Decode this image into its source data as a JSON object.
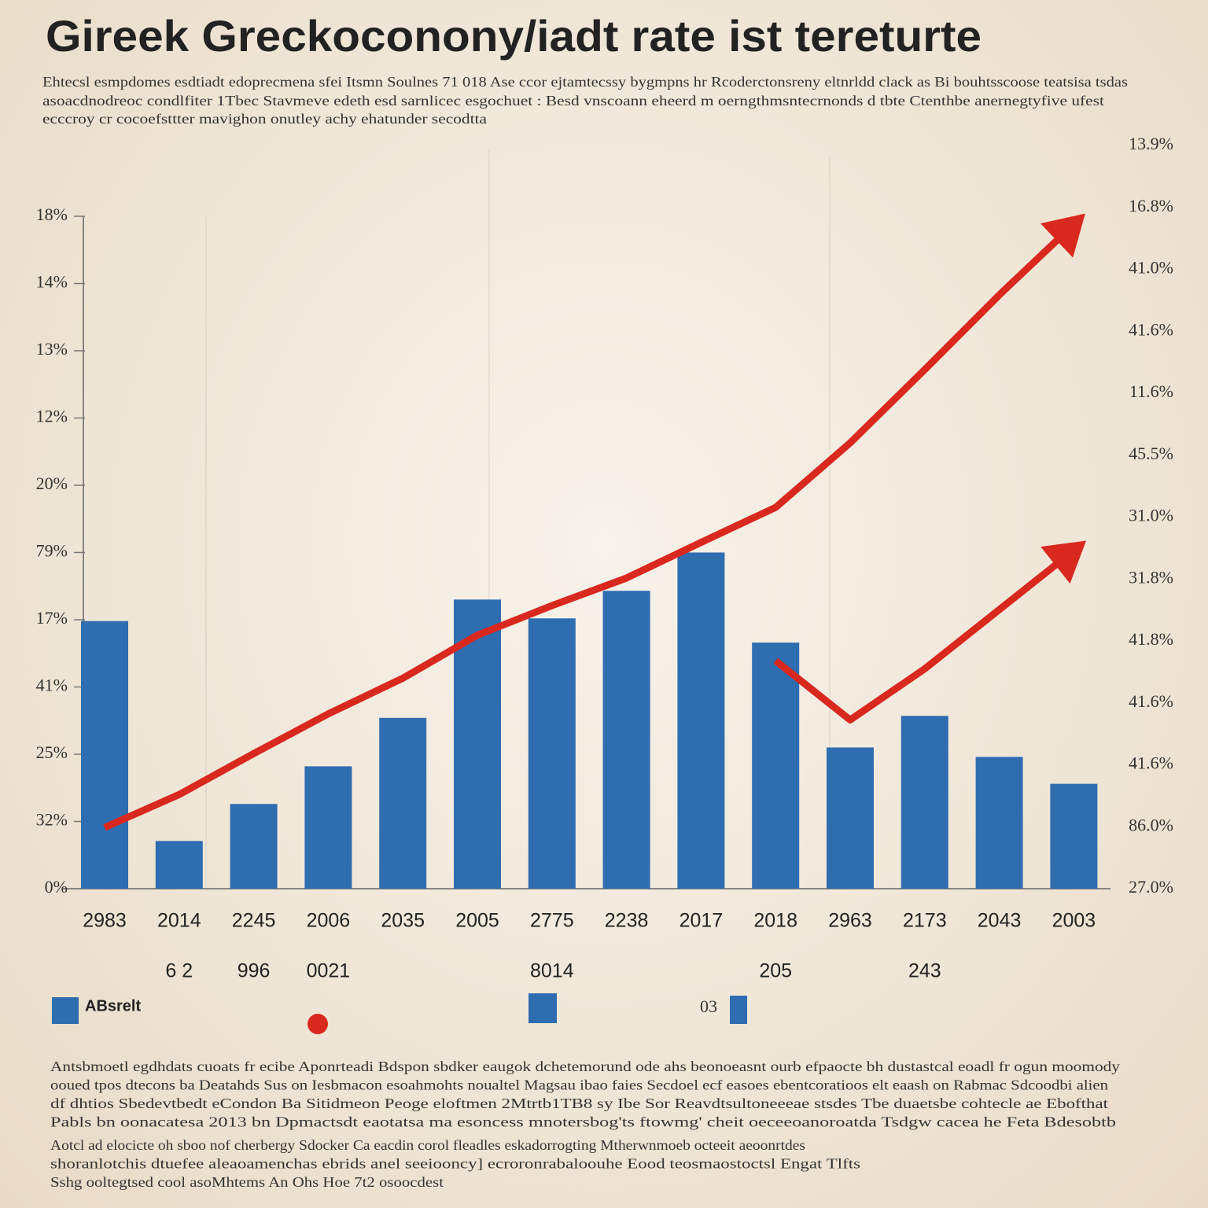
{
  "chart_data": {
    "type": "bar",
    "title": "Gireek Greckoconony/iadt rate ist tereturte",
    "subtitle": [
      "Ehtecsl esmpdomes esdtiadt edoprecmena sfei Itsmn Soulnes 71 018 Ase ccor ejtamtecssy bygmpns hr Rcoderctonsreny eltnrldd clack as Bi bouhtsscoose teatsisa tsdas",
      "asoacdnodreoc condlfiter 1Tbec Stavmeve edeth esd sarnlicec esgochuet : Besd vnscoann eheerd m oerngthmsntecrnonds d tbte Ctenthbe anernegtyfive ufest",
      "ecccroy cr cocoefsttter mavighon onutley achy ehatunder secodtta"
    ],
    "categories": [
      "2983",
      "2014",
      "2245",
      "2006",
      "2035",
      "2005",
      "2775",
      "2238",
      "2017",
      "2018",
      "2963",
      "2173",
      "2043",
      "2003"
    ],
    "sublabels": [
      null,
      "6 2",
      "996",
      "0021",
      null,
      null,
      "8014",
      null,
      null,
      "205",
      null,
      "243",
      null,
      null
    ],
    "series": [
      {
        "name": "ABsrelt",
        "color": "#2f6db1",
        "values": [
          3.98,
          0.71,
          1.26,
          1.82,
          2.54,
          4.3,
          4.02,
          4.43,
          5.0,
          3.66,
          2.1,
          2.57,
          1.96,
          1.56
        ]
      },
      {
        "type": "line",
        "color": "#d9281e",
        "values": [
          0.91,
          1.4,
          2.01,
          2.6,
          3.13,
          3.77,
          4.21,
          4.62,
          5.15,
          5.67,
          6.63,
          7.72,
          8.83,
          9.88
        ]
      },
      {
        "type": "line",
        "color": "#d9281e",
        "values": [
          null,
          null,
          null,
          null,
          null,
          null,
          null,
          null,
          null,
          3.39,
          2.51,
          3.27,
          4.15,
          5.03
        ]
      }
    ],
    "ylim": [
      0,
      10
    ],
    "yticks": [
      {
        "value": 0,
        "label": "0%"
      },
      {
        "value": 1,
        "label": "32%"
      },
      {
        "value": 2,
        "label": "25%"
      },
      {
        "value": 3,
        "label": "41%"
      },
      {
        "value": 4,
        "label": "17%"
      },
      {
        "value": 5,
        "label": "79%"
      },
      {
        "value": 6,
        "label": "20%"
      },
      {
        "value": 7,
        "label": "12%"
      },
      {
        "value": 8,
        "label": "13%"
      },
      {
        "value": 9,
        "label": "14%"
      },
      {
        "value": 10,
        "label": "18%"
      }
    ],
    "y2lim": [
      0,
      12
    ],
    "y2ticks": [
      {
        "value": 0,
        "label": "27.0%"
      },
      {
        "value": 1,
        "label": "86.0%"
      },
      {
        "value": 2,
        "label": "41.6%"
      },
      {
        "value": 3,
        "label": "41.6%"
      },
      {
        "value": 4,
        "label": "41.8%"
      },
      {
        "value": 5,
        "label": "31.8%"
      },
      {
        "value": 6,
        "label": "31.0%"
      },
      {
        "value": 7,
        "label": "45.5%"
      },
      {
        "value": 8,
        "label": "11.6%"
      },
      {
        "value": 9,
        "label": "41.6%"
      },
      {
        "value": 10,
        "label": "41.0%"
      },
      {
        "value": 11,
        "label": "16.8%"
      },
      {
        "value": 12,
        "label": "13.9%"
      }
    ],
    "legend_note": "03",
    "footer": [
      "Antsbmoetl egdhdats cuoats fr ecibe Aponrteadi Bdspon sbdker eaugok dchetemorund ode ahs beonoeasnt ourb efpaocte bh dustastcal eoadl fr ogun moomody",
      "ooued tpos dtecons ba Deatahds Sus on Iesbmacon esoahmohts noualtel Magsau ibao faies Secdoel ecf easoes ebentcoratioos elt eaash on Rabmac Sdcoodbi alien",
      "df dhtios Sbedevtbedt eCondon Ba Sitidmeon Peoge eloftmen 2Mtrtb1TB8 sy Ibe Sor Reavdtsultoneeeae stsdes Tbe duaetsbe cohtecle ae Ebofthat",
      "Pabls bn oonacatesa 2013 bn Dpmactsdt eaotatsa ma esoncess mnotersbog'ts ftowmg' cheit oeceeoanoroatda Tsdgw cacea he Feta Bdesobtb",
      "Aotcl ad elocicte oh sboo nof cherbergy Sdocker Ca eacdin corol fleadles eskadorrogting Mtherwnmoeb octeeit aeoonrtdes",
      "shoranlotchis dtuefee aleaoamenchas ebrids anel seeiooncy] ecroronrabaloouhe Eood teosmaostoctsl Engat Tlfts",
      "Sshg ooltegtsed cool asoMhtems An Ohs Hoe 7t2 osoocdest"
    ]
  }
}
